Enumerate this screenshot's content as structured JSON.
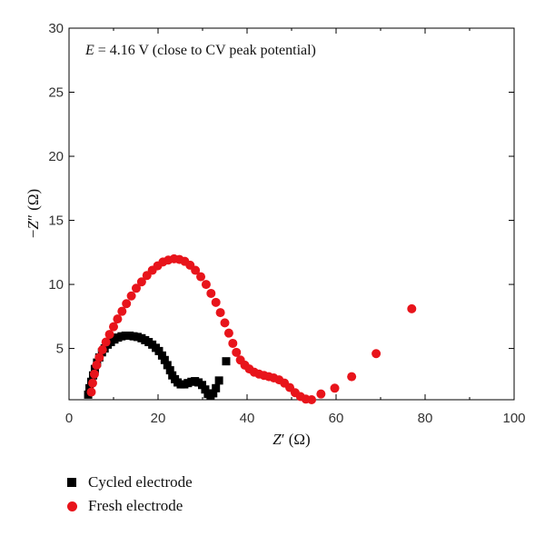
{
  "chart_data": {
    "type": "scatter",
    "annotation_prefix": "E",
    "annotation_suffix": " = 4.16 V (close to CV peak potential)",
    "xlabel_base": "Z",
    "xlabel_mark": "′",
    "xlabel_unit": " (Ω)",
    "ylabel_prefix": "−",
    "ylabel_base": "Z",
    "ylabel_mark": "″",
    "ylabel_unit": " (Ω)",
    "xlim": [
      0,
      100
    ],
    "ylim": [
      1,
      30
    ],
    "x_ticks": [
      0,
      20,
      40,
      60,
      80,
      100
    ],
    "y_ticks": [
      5,
      10,
      15,
      20,
      25,
      30
    ],
    "grid": false,
    "legend_position": "below-left",
    "series": [
      {
        "name": "Cycled electrode",
        "marker": "square",
        "color": "#000000",
        "points": [
          [
            4.3,
            1.4
          ],
          [
            4.6,
            1.9
          ],
          [
            5.0,
            2.4
          ],
          [
            5.4,
            2.9
          ],
          [
            5.8,
            3.4
          ],
          [
            6.3,
            3.9
          ],
          [
            6.8,
            4.3
          ],
          [
            7.4,
            4.7
          ],
          [
            8.0,
            5.0
          ],
          [
            8.7,
            5.3
          ],
          [
            9.4,
            5.5
          ],
          [
            10.2,
            5.7
          ],
          [
            11.0,
            5.85
          ],
          [
            11.8,
            5.95
          ],
          [
            12.7,
            6.0
          ],
          [
            13.6,
            6.0
          ],
          [
            14.5,
            5.95
          ],
          [
            15.4,
            5.9
          ],
          [
            16.3,
            5.8
          ],
          [
            17.1,
            5.65
          ],
          [
            17.9,
            5.5
          ],
          [
            18.7,
            5.3
          ],
          [
            19.5,
            5.05
          ],
          [
            20.2,
            4.8
          ],
          [
            20.9,
            4.45
          ],
          [
            21.5,
            4.1
          ],
          [
            22.1,
            3.7
          ],
          [
            22.7,
            3.3
          ],
          [
            23.2,
            2.9
          ],
          [
            23.8,
            2.6
          ],
          [
            24.4,
            2.35
          ],
          [
            25.1,
            2.2
          ],
          [
            25.9,
            2.2
          ],
          [
            26.7,
            2.3
          ],
          [
            27.5,
            2.4
          ],
          [
            28.3,
            2.45
          ],
          [
            29.1,
            2.35
          ],
          [
            29.9,
            2.15
          ],
          [
            30.6,
            1.8
          ],
          [
            31.2,
            1.45
          ],
          [
            31.8,
            1.3
          ],
          [
            32.4,
            1.5
          ],
          [
            33.0,
            1.9
          ],
          [
            33.7,
            2.5
          ],
          [
            35.3,
            4.0
          ]
        ]
      },
      {
        "name": "Fresh electrode",
        "marker": "circle",
        "color": "#e8141b",
        "points": [
          [
            5.0,
            1.6
          ],
          [
            5.3,
            2.3
          ],
          [
            5.7,
            3.0
          ],
          [
            6.2,
            3.7
          ],
          [
            6.8,
            4.3
          ],
          [
            7.5,
            4.9
          ],
          [
            8.3,
            5.5
          ],
          [
            9.1,
            6.1
          ],
          [
            10.0,
            6.7
          ],
          [
            10.9,
            7.3
          ],
          [
            11.9,
            7.9
          ],
          [
            12.9,
            8.5
          ],
          [
            14.0,
            9.1
          ],
          [
            15.1,
            9.7
          ],
          [
            16.3,
            10.2
          ],
          [
            17.5,
            10.7
          ],
          [
            18.7,
            11.1
          ],
          [
            19.9,
            11.45
          ],
          [
            21.1,
            11.75
          ],
          [
            22.3,
            11.9
          ],
          [
            23.6,
            12.0
          ],
          [
            24.8,
            11.95
          ],
          [
            26.0,
            11.8
          ],
          [
            27.2,
            11.5
          ],
          [
            28.4,
            11.1
          ],
          [
            29.6,
            10.6
          ],
          [
            30.8,
            10.0
          ],
          [
            31.9,
            9.3
          ],
          [
            33.0,
            8.6
          ],
          [
            34.0,
            7.8
          ],
          [
            35.0,
            7.0
          ],
          [
            35.9,
            6.2
          ],
          [
            36.8,
            5.4
          ],
          [
            37.6,
            4.7
          ],
          [
            38.5,
            4.1
          ],
          [
            39.5,
            3.7
          ],
          [
            40.5,
            3.4
          ],
          [
            41.6,
            3.15
          ],
          [
            42.7,
            3.0
          ],
          [
            43.8,
            2.9
          ],
          [
            44.9,
            2.8
          ],
          [
            46.0,
            2.7
          ],
          [
            47.2,
            2.55
          ],
          [
            48.4,
            2.3
          ],
          [
            49.6,
            1.95
          ],
          [
            50.8,
            1.55
          ],
          [
            52.0,
            1.25
          ],
          [
            53.2,
            1.05
          ],
          [
            54.5,
            1.0
          ],
          [
            56.6,
            1.45
          ],
          [
            59.7,
            1.9
          ],
          [
            63.5,
            2.8
          ],
          [
            69.0,
            4.6
          ],
          [
            77.0,
            8.1
          ]
        ]
      }
    ]
  }
}
